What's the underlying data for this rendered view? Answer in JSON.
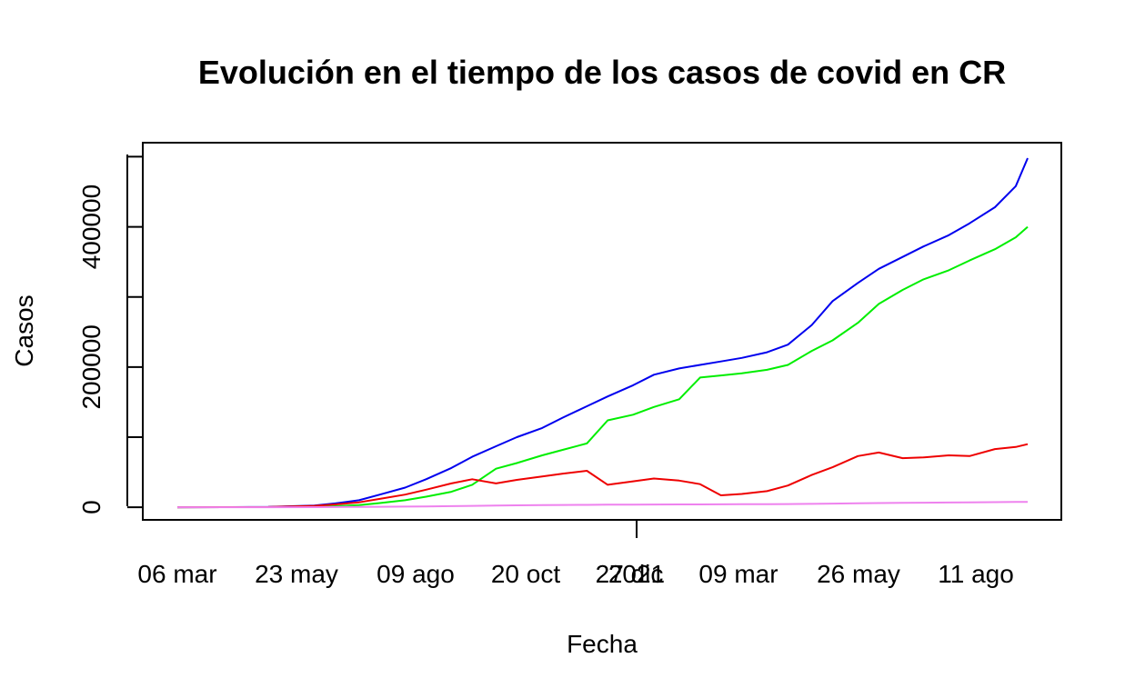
{
  "chart_data": {
    "type": "line",
    "title": "Evolución en el tiempo de los casos de covid en CR",
    "xlabel": "Fecha",
    "ylabel": "Casos",
    "x_ticks": [
      "06 mar",
      "23 may",
      "09 ago",
      "20 oct",
      "27 dic",
      "2021",
      "09 mar",
      "26 may",
      "11 ago"
    ],
    "y_ticks": [
      0,
      200000,
      400000
    ],
    "ylim": [
      -18000,
      520000
    ],
    "grid": false,
    "legend": "none",
    "x": [
      "2020-03-06",
      "2020-04-06",
      "2020-05-06",
      "2020-06-06",
      "2020-06-20",
      "2020-07-06",
      "2020-07-20",
      "2020-08-06",
      "2020-08-20",
      "2020-09-06",
      "2020-09-20",
      "2020-10-06",
      "2020-10-20",
      "2020-11-06",
      "2020-11-20",
      "2020-12-06",
      "2020-12-20",
      "2021-01-06",
      "2021-01-20",
      "2021-02-06",
      "2021-02-20",
      "2021-03-06",
      "2021-03-20",
      "2021-04-06",
      "2021-04-20",
      "2021-05-06",
      "2021-05-20",
      "2021-06-06",
      "2021-06-20",
      "2021-07-06",
      "2021-07-20",
      "2021-08-06",
      "2021-08-20",
      "2021-09-06",
      "2021-09-20",
      "2021-09-28"
    ],
    "series": [
      {
        "color": "#0000ee",
        "values": [
          0,
          200,
          500,
          2500,
          5500,
          10000,
          18000,
          28000,
          40000,
          56000,
          72000,
          87000,
          100000,
          113000,
          128000,
          144000,
          158000,
          174000,
          189000,
          198000,
          203000,
          208000,
          213000,
          221000,
          232000,
          260000,
          294000,
          320000,
          340000,
          357000,
          372000,
          388000,
          405000,
          428000,
          458000,
          498000
        ]
      },
      {
        "color": "#00ee00",
        "values": [
          0,
          100,
          200,
          600,
          1500,
          3000,
          6000,
          10000,
          15000,
          22000,
          32000,
          55000,
          63000,
          74000,
          82000,
          91000,
          124000,
          132000,
          143000,
          154000,
          185000,
          188000,
          191000,
          196000,
          203000,
          223000,
          238000,
          263000,
          290000,
          310000,
          325000,
          338000,
          352000,
          368000,
          385000,
          400000
        ]
      },
      {
        "color": "#ee0000",
        "values": [
          0,
          100,
          300,
          1900,
          4000,
          7000,
          12000,
          18000,
          25000,
          34000,
          40000,
          34000,
          39000,
          44000,
          48000,
          52000,
          32000,
          37000,
          41000,
          38000,
          33000,
          17000,
          19000,
          23000,
          31000,
          46000,
          57000,
          73000,
          78000,
          70000,
          71000,
          74000,
          73000,
          83000,
          86000,
          90000
        ]
      },
      {
        "color": "#ee82ee",
        "values": [
          0,
          10,
          50,
          150,
          300,
          500,
          700,
          900,
          1200,
          1600,
          2000,
          2500,
          2800,
          3000,
          3200,
          3400,
          3600,
          3800,
          3900,
          4000,
          4100,
          4200,
          4300,
          4400,
          4500,
          4800,
          5200,
          5600,
          6000,
          6300,
          6500,
          6800,
          7000,
          7300,
          7500,
          7700
        ]
      }
    ]
  }
}
